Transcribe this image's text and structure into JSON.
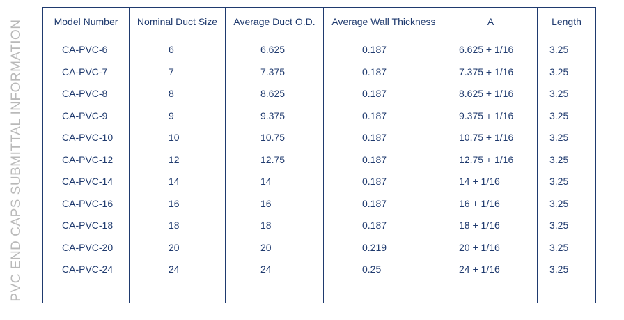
{
  "side_title": "PVC END CAPS SUBMITTAL INFORMATION",
  "table": {
    "headers": [
      "Model Number",
      "Nominal Duct Size",
      "Average Duct O.D.",
      "Average Wall Thickness",
      "A",
      "Length"
    ],
    "rows": [
      [
        "CA-PVC-6",
        "6",
        "6.625",
        "0.187",
        "6.625 + 1/16",
        "3.25"
      ],
      [
        "CA-PVC-7",
        "7",
        "7.375",
        "0.187",
        "7.375 + 1/16",
        "3.25"
      ],
      [
        "CA-PVC-8",
        "8",
        "8.625",
        "0.187",
        "8.625 + 1/16",
        "3.25"
      ],
      [
        "CA-PVC-9",
        "9",
        "9.375",
        "0.187",
        "9.375 + 1/16",
        "3.25"
      ],
      [
        "CA-PVC-10",
        "10",
        "10.75",
        "0.187",
        "10.75 + 1/16",
        "3.25"
      ],
      [
        "CA-PVC-12",
        "12",
        "12.75",
        "0.187",
        "12.75 + 1/16",
        "3.25"
      ],
      [
        "CA-PVC-14",
        "14",
        "14",
        "0.187",
        "14 + 1/16",
        "3.25"
      ],
      [
        "CA-PVC-16",
        "16",
        "16",
        "0.187",
        "16 + 1/16",
        "3.25"
      ],
      [
        "CA-PVC-18",
        "18",
        "18",
        "0.187",
        "18 + 1/16",
        "3.25"
      ],
      [
        "CA-PVC-20",
        "20",
        "20",
        "0.219",
        "20 + 1/16",
        "3.25"
      ],
      [
        "CA-PVC-24",
        "24",
        "24",
        "0.25",
        "24 + 1/16",
        "3.25"
      ]
    ]
  }
}
